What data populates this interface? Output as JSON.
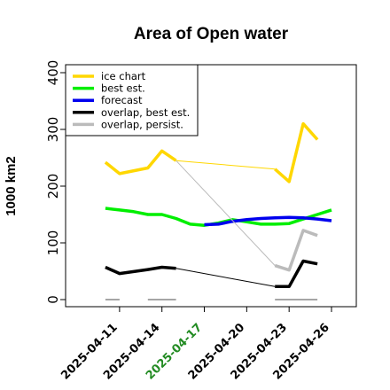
{
  "chart_data": {
    "type": "line",
    "title": "Area of Open water",
    "ylabel": "1000 km2",
    "xlabel": "",
    "xlim": [
      "2025-04-09",
      "2025-04-26"
    ],
    "ylim": [
      0,
      420
    ],
    "yticks": [
      0,
      100,
      200,
      300,
      400
    ],
    "xticks": [
      {
        "date": "2025-04-11",
        "label": "2025-04-11",
        "color": "#000000"
      },
      {
        "date": "2025-04-14",
        "label": "2025-04-14",
        "color": "#000000"
      },
      {
        "date": "2025-04-17",
        "label": "2025-04-17",
        "color": "#228B22"
      },
      {
        "date": "2025-04-20",
        "label": "2025-04-20",
        "color": "#000000"
      },
      {
        "date": "2025-04-23",
        "label": "2025-04-23",
        "color": "#000000"
      },
      {
        "date": "2025-04-26",
        "label": "2025-04-26",
        "color": "#000000"
      }
    ],
    "legend": "top-left",
    "grid": false,
    "series": [
      {
        "name": "ice chart",
        "color": "#FFD700",
        "width": 3.5,
        "points": [
          [
            "2025-04-10",
            242
          ],
          [
            "2025-04-11",
            222
          ],
          [
            "2025-04-13",
            232
          ],
          [
            "2025-04-14",
            262
          ],
          [
            "2025-04-15",
            245
          ]
        ]
      },
      {
        "name": "",
        "color": "#FFD700",
        "width": 1,
        "points": [
          [
            "2025-04-15",
            245
          ],
          [
            "2025-04-22",
            230
          ]
        ]
      },
      {
        "name": "",
        "color": "#FFD700",
        "width": 3.5,
        "points": [
          [
            "2025-04-22",
            230
          ],
          [
            "2025-04-23",
            208
          ],
          [
            "2025-04-24",
            310
          ],
          [
            "2025-04-25",
            282
          ]
        ]
      },
      {
        "name": "best est.",
        "color": "#00EE00",
        "width": 3.5,
        "points": [
          [
            "2025-04-10",
            161
          ],
          [
            "2025-04-11",
            158
          ],
          [
            "2025-04-12",
            155
          ],
          [
            "2025-04-13",
            150
          ],
          [
            "2025-04-14",
            150
          ],
          [
            "2025-04-15",
            143
          ],
          [
            "2025-04-16",
            133
          ],
          [
            "2025-04-17",
            131
          ],
          [
            "2025-04-18",
            135
          ],
          [
            "2025-04-19",
            141
          ],
          [
            "2025-04-20",
            137
          ],
          [
            "2025-04-21",
            133
          ],
          [
            "2025-04-22",
            133
          ],
          [
            "2025-04-23",
            134
          ],
          [
            "2025-04-24",
            142
          ],
          [
            "2025-04-25",
            150
          ],
          [
            "2025-04-26",
            158
          ]
        ]
      },
      {
        "name": "forecast",
        "color": "#0000EE",
        "width": 3.5,
        "points": [
          [
            "2025-04-17",
            132
          ],
          [
            "2025-04-18",
            133
          ],
          [
            "2025-04-19",
            138
          ],
          [
            "2025-04-20",
            141
          ],
          [
            "2025-04-21",
            143
          ],
          [
            "2025-04-22",
            144
          ],
          [
            "2025-04-23",
            145
          ],
          [
            "2025-04-24",
            144
          ],
          [
            "2025-04-25",
            142
          ],
          [
            "2025-04-26",
            139
          ]
        ]
      },
      {
        "name": "overlap, best est.",
        "color": "#000000",
        "width": 3.5,
        "points": [
          [
            "2025-04-10",
            57
          ],
          [
            "2025-04-11",
            46
          ],
          [
            "2025-04-13",
            53
          ],
          [
            "2025-04-14",
            57
          ],
          [
            "2025-04-15",
            55
          ]
        ]
      },
      {
        "name": "",
        "color": "#000000",
        "width": 1,
        "points": [
          [
            "2025-04-15",
            55
          ],
          [
            "2025-04-22",
            23
          ]
        ]
      },
      {
        "name": "",
        "color": "#000000",
        "width": 3.5,
        "points": [
          [
            "2025-04-22",
            23
          ],
          [
            "2025-04-23",
            23
          ],
          [
            "2025-04-24",
            68
          ],
          [
            "2025-04-25",
            63
          ]
        ]
      },
      {
        "name": "overlap, persist.",
        "color": "#BBBBBB",
        "width": 1,
        "points": [
          [
            "2025-04-15",
            245
          ],
          [
            "2025-04-22",
            60
          ]
        ]
      },
      {
        "name": "",
        "color": "#BBBBBB",
        "width": 3.5,
        "points": [
          [
            "2025-04-22",
            60
          ],
          [
            "2025-04-23",
            52
          ],
          [
            "2025-04-24",
            122
          ],
          [
            "2025-04-25",
            113
          ]
        ]
      },
      {
        "name": "",
        "color": "#888888",
        "width": 1.5,
        "points": [
          [
            "2025-04-10",
            0
          ],
          [
            "2025-04-11",
            0
          ]
        ]
      },
      {
        "name": "",
        "color": "#888888",
        "width": 1.5,
        "points": [
          [
            "2025-04-13",
            0
          ],
          [
            "2025-04-15",
            0
          ]
        ]
      },
      {
        "name": "",
        "color": "#888888",
        "width": 1.5,
        "points": [
          [
            "2025-04-22",
            0
          ],
          [
            "2025-04-25",
            0
          ]
        ]
      }
    ],
    "legend_entries": [
      {
        "label": "ice chart",
        "color": "#FFD700"
      },
      {
        "label": "best est.",
        "color": "#00EE00"
      },
      {
        "label": "forecast",
        "color": "#0000EE"
      },
      {
        "label": "overlap, best est.",
        "color": "#000000"
      },
      {
        "label": "overlap, persist.",
        "color": "#BBBBBB"
      }
    ]
  }
}
